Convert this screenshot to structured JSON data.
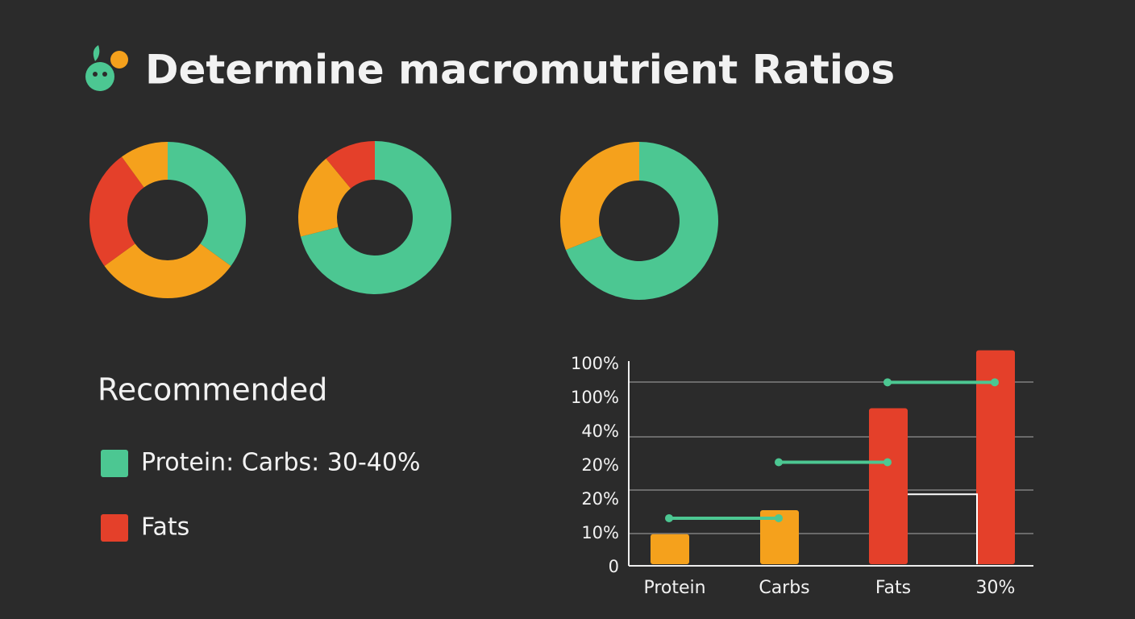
{
  "title": "Determine macromutrient Ratios",
  "donuts": [
    {
      "segments": [
        {
          "value": 35,
          "color": "#4cc792"
        },
        {
          "value": 30,
          "color": "#f5a11c"
        },
        {
          "value": 25,
          "color": "#e4402a"
        },
        {
          "value": 10,
          "color": "#f5a11c"
        }
      ]
    },
    {
      "segments": [
        {
          "value": 71,
          "color": "#4cc792"
        },
        {
          "value": 18,
          "color": "#f5a11c"
        },
        {
          "value": 11,
          "color": "#e4402a"
        }
      ]
    },
    {
      "segments": [
        {
          "value": 69,
          "color": "#4cc792"
        },
        {
          "value": 31,
          "color": "#f5a11c"
        }
      ]
    }
  ],
  "legend": {
    "heading": "Recommended",
    "items": [
      {
        "label": "Protein: Carbs: 30-40%",
        "color": "#4cc792"
      },
      {
        "label": "Fats",
        "color": "#e4402a"
      }
    ]
  },
  "bar_chart": {
    "y_labels": [
      "100%",
      "100%",
      "40%",
      "20%",
      "20%",
      "10%",
      "0"
    ],
    "categories": [
      "Protein",
      "Carbs",
      "Fats",
      "30%"
    ],
    "bars": [
      {
        "value": 15,
        "color": "#f5a11c"
      },
      {
        "value": 27,
        "color": "#f5a11c"
      },
      {
        "value": 78,
        "color": "#e4402a"
      },
      {
        "value": 107,
        "color": "#e4402a"
      }
    ],
    "links": [
      23,
      51,
      91
    ],
    "link_color": "#4cc792",
    "marker": 35
  }
}
